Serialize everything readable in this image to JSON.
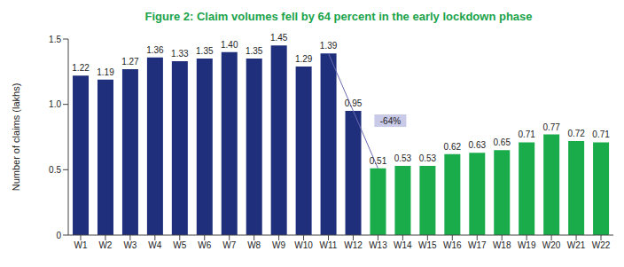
{
  "chart_data": {
    "type": "bar",
    "title": "Figure 2: Claim volumes fell by 64 percent in the early lockdown phase",
    "y_label": "Number of claims (lakhs)",
    "categories": [
      "W1",
      "W2",
      "W3",
      "W4",
      "W5",
      "W6",
      "W7",
      "W8",
      "W9",
      "W10",
      "W11",
      "W12",
      "W13",
      "W14",
      "W15",
      "W16",
      "W17",
      "W18",
      "W19",
      "W20",
      "W21",
      "W22"
    ],
    "values": [
      1.22,
      1.19,
      1.27,
      1.36,
      1.33,
      1.35,
      1.4,
      1.35,
      1.45,
      1.29,
      1.39,
      0.95,
      0.51,
      0.53,
      0.53,
      0.62,
      0.63,
      0.65,
      0.71,
      0.77,
      0.72,
      0.71
    ],
    "value_labels": [
      "1.22",
      "1.19",
      "1.27",
      "1.36",
      "1.33",
      "1.35",
      "1.40",
      "1.35",
      "1.45",
      "1.29",
      "1.39",
      "0.95",
      "0.51",
      "0.53",
      "0.53",
      "0.62",
      "0.63",
      "0.65",
      "0.71",
      "0.77",
      "0.72",
      "0.71"
    ],
    "colors": [
      "#1f2f7c",
      "#1f2f7c",
      "#1f2f7c",
      "#1f2f7c",
      "#1f2f7c",
      "#1f2f7c",
      "#1f2f7c",
      "#1f2f7c",
      "#1f2f7c",
      "#1f2f7c",
      "#1f2f7c",
      "#1f2f7c",
      "#1aab4b",
      "#1aab4b",
      "#1aab4b",
      "#1aab4b",
      "#1aab4b",
      "#1aab4b",
      "#1aab4b",
      "#1aab4b",
      "#1aab4b",
      "#1aab4b"
    ],
    "ylim": [
      0,
      1.5
    ],
    "yticks": [
      0,
      0.5,
      {
        "value": 1,
        "label": "1.0"
      },
      1.5
    ],
    "grid": false,
    "data_labels": true,
    "annotations": [
      {
        "text": "-64%",
        "from": "W11",
        "to": "W13"
      }
    ]
  }
}
